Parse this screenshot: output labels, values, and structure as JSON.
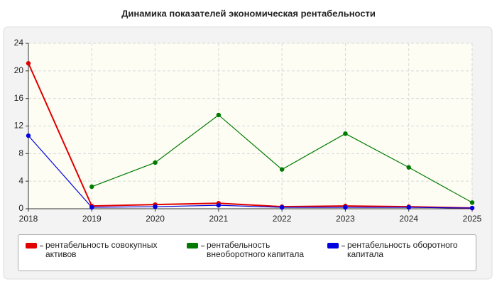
{
  "chart_data": {
    "type": "line",
    "title": "Динамика показателей экономическая рентабельности",
    "x": [
      2018,
      2019,
      2020,
      2021,
      2022,
      2023,
      2024,
      2025
    ],
    "xlim": [
      2018,
      2025
    ],
    "xticks": [
      2018,
      2019,
      2020,
      2021,
      2022,
      2023,
      2024,
      2025
    ],
    "ylim": [
      0,
      24
    ],
    "yticks": [
      0,
      4,
      8,
      12,
      16,
      20,
      24
    ],
    "grid": true,
    "series": [
      {
        "name": "рентабельность совокупных активов",
        "color": "#e00000",
        "values": [
          21.1,
          0.4,
          0.6,
          0.8,
          0.3,
          0.4,
          0.3,
          0.1
        ]
      },
      {
        "name": "рентабельность внеоборотного капитала",
        "color": "#007a00",
        "values": [
          null,
          3.2,
          6.7,
          13.6,
          5.7,
          10.9,
          6.0,
          0.9
        ]
      },
      {
        "name": "рентабельность оборотного капитала",
        "color": "#0000e0",
        "values": [
          10.6,
          0.2,
          0.3,
          0.5,
          0.2,
          0.2,
          0.2,
          0.1
        ]
      }
    ]
  }
}
